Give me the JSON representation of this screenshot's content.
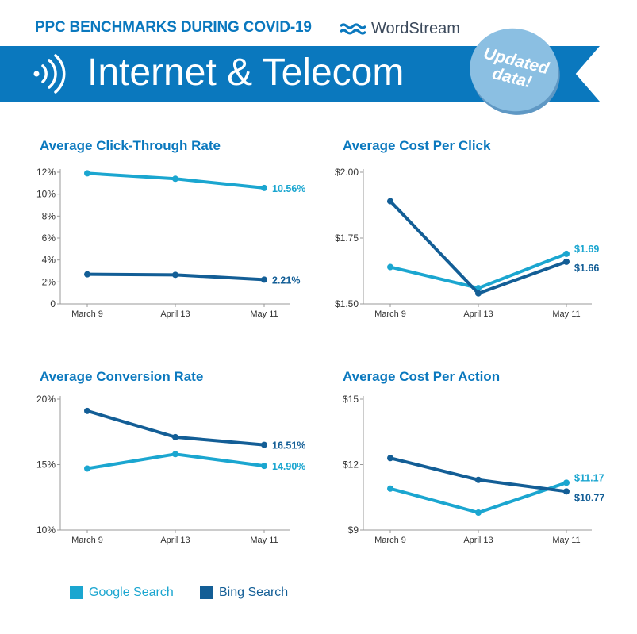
{
  "header": {
    "supertitle": "PPC BENCHMARKS DURING COVID-19",
    "logo_text": "WordStream",
    "banner_title": "Internet & Telecom",
    "banner_icon": "wireless-signal-icon",
    "badge_line1": "Updated",
    "badge_line2": "data!"
  },
  "colors": {
    "google": "#1ba6d0",
    "bing": "#135e96",
    "banner": "#0a78be"
  },
  "legend": [
    {
      "name": "Google Search",
      "color": "#1ba6d0"
    },
    {
      "name": "Bing Search",
      "color": "#135e96"
    }
  ],
  "chart_data": [
    {
      "type": "line",
      "title": "Average Click-Through Rate",
      "categories": [
        "March 9",
        "April 13",
        "May 11"
      ],
      "ylim": [
        0,
        12
      ],
      "yticks": [
        0,
        2,
        4,
        6,
        8,
        10,
        12
      ],
      "ytick_labels": [
        "0",
        "2%",
        "4%",
        "6%",
        "8%",
        "10%",
        "12%"
      ],
      "series": [
        {
          "name": "Google Search",
          "values": [
            11.9,
            11.4,
            10.56
          ],
          "end_label": "10.56%"
        },
        {
          "name": "Bing Search",
          "values": [
            2.7,
            2.65,
            2.21
          ],
          "end_label": "2.21%"
        }
      ]
    },
    {
      "type": "line",
      "title": "Average Cost Per Click",
      "categories": [
        "March 9",
        "April 13",
        "May 11"
      ],
      "ylim": [
        1.5,
        2.0
      ],
      "yticks": [
        1.5,
        1.75,
        2.0
      ],
      "ytick_labels": [
        "$1.50",
        "$1.75",
        "$2.00"
      ],
      "series": [
        {
          "name": "Google Search",
          "values": [
            1.64,
            1.56,
            1.69
          ],
          "end_label": "$1.69"
        },
        {
          "name": "Bing Search",
          "values": [
            1.89,
            1.54,
            1.66
          ],
          "end_label": "$1.66"
        }
      ]
    },
    {
      "type": "line",
      "title": "Average Conversion Rate",
      "categories": [
        "March 9",
        "April 13",
        "May 11"
      ],
      "ylim": [
        10,
        20
      ],
      "yticks": [
        10,
        15,
        20
      ],
      "ytick_labels": [
        "10%",
        "15%",
        "20%"
      ],
      "series": [
        {
          "name": "Google Search",
          "values": [
            14.7,
            15.8,
            14.9
          ],
          "end_label": "14.90%"
        },
        {
          "name": "Bing Search",
          "values": [
            19.1,
            17.1,
            16.51
          ],
          "end_label": "16.51%"
        }
      ]
    },
    {
      "type": "line",
      "title": "Average Cost Per Action",
      "categories": [
        "March 9",
        "April 13",
        "May 11"
      ],
      "ylim": [
        9,
        15
      ],
      "yticks": [
        9,
        12,
        15
      ],
      "ytick_labels": [
        "$9",
        "$12",
        "$15"
      ],
      "series": [
        {
          "name": "Google Search",
          "values": [
            10.9,
            9.8,
            11.17
          ],
          "end_label": "$11.17"
        },
        {
          "name": "Bing Search",
          "values": [
            12.3,
            11.3,
            10.77
          ],
          "end_label": "$10.77"
        }
      ]
    }
  ]
}
